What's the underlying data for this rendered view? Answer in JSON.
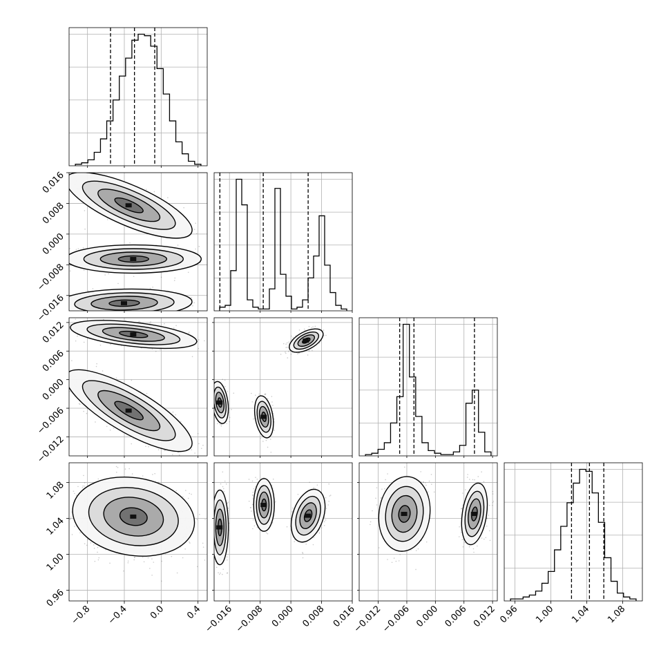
{
  "chart_data": {
    "type": "corner",
    "title": "",
    "grid": true,
    "colors": {
      "hist": "#000000",
      "scatter": "#666666",
      "contour": "#000000"
    },
    "params": [
      {
        "range": [
          -1.0,
          0.5
        ],
        "ticks": [
          -0.8,
          -0.4,
          0.0,
          0.4
        ],
        "tick_labels": [
          "−0.8",
          "−0.4",
          "0.0",
          "0.4"
        ]
      },
      {
        "range": [
          -0.02,
          0.016
        ],
        "ticks": [
          -0.016,
          -0.008,
          0.0,
          0.008,
          0.016
        ],
        "tick_labels": [
          "−0.016",
          "−0.008",
          "0.000",
          "0.008",
          "0.016"
        ]
      },
      {
        "range": [
          -0.016,
          0.013
        ],
        "ticks": [
          -0.012,
          -0.006,
          0.0,
          0.006,
          0.012
        ],
        "tick_labels": [
          "−0.012",
          "−0.006",
          "0.000",
          "0.006",
          "0.012"
        ]
      },
      {
        "range": [
          0.948,
          1.102
        ],
        "ticks": [
          0.96,
          1.0,
          1.04,
          1.08
        ],
        "tick_labels": [
          "0.96",
          "1.00",
          "1.04",
          "1.08"
        ]
      }
    ],
    "histograms": [
      {
        "values": [
          1,
          2,
          4,
          9,
          18,
          30,
          44,
          60,
          72,
          84,
          88,
          87,
          80,
          65,
          48,
          30,
          16,
          8,
          3,
          1
        ],
        "quantiles": [
          -0.55,
          -0.29,
          -0.07
        ]
      },
      {
        "values": [
          2,
          3,
          22,
          72,
          58,
          6,
          2,
          1,
          1,
          12,
          67,
          20,
          8,
          1,
          2,
          6,
          18,
          30,
          52,
          25,
          10,
          3,
          1
        ],
        "quantiles": [
          -0.0185,
          -0.0072,
          0.0045
        ]
      },
      {
        "values": [
          1,
          2,
          5,
          10,
          25,
          45,
          100,
          60,
          30,
          10,
          4,
          2,
          1,
          1,
          3,
          8,
          40,
          50,
          18,
          3
        ],
        "quantiles": [
          -0.0075,
          -0.0045,
          0.0082
        ]
      },
      {
        "values": [
          1,
          1,
          2,
          3,
          5,
          9,
          15,
          26,
          38,
          50,
          60,
          67,
          66,
          55,
          40,
          22,
          10,
          4,
          2,
          1
        ],
        "quantiles": [
          1.023,
          1.043,
          1.059
        ]
      }
    ],
    "pairs": [
      {
        "row": 1,
        "col": 0,
        "clusters": [
          {
            "cx": -0.35,
            "cy": 0.0075,
            "sx": 0.28,
            "sy": 0.0035,
            "rho": -0.75,
            "w": 0.33
          },
          {
            "cx": -0.3,
            "cy": -0.0065,
            "sx": 0.3,
            "sy": 0.0015,
            "rho": 0.0,
            "w": 0.33
          },
          {
            "cx": -0.4,
            "cy": -0.018,
            "sx": 0.3,
            "sy": 0.0015,
            "rho": 0.1,
            "w": 0.34
          }
        ]
      },
      {
        "row": 2,
        "col": 0,
        "clusters": [
          {
            "cx": -0.3,
            "cy": 0.0095,
            "sx": 0.28,
            "sy": 0.0012,
            "rho": -0.5,
            "w": 0.45
          },
          {
            "cx": -0.35,
            "cy": -0.0065,
            "sx": 0.28,
            "sy": 0.0035,
            "rho": -0.8,
            "w": 0.55
          }
        ]
      },
      {
        "row": 2,
        "col": 1,
        "clusters": [
          {
            "cx": -0.0185,
            "cy": -0.0048,
            "sx": 0.0009,
            "sy": 0.0018,
            "rho": -0.3,
            "w": 0.33
          },
          {
            "cx": -0.007,
            "cy": -0.0078,
            "sx": 0.001,
            "sy": 0.0018,
            "rho": -0.3,
            "w": 0.33
          },
          {
            "cx": 0.004,
            "cy": 0.0082,
            "sx": 0.0018,
            "sy": 0.001,
            "rho": 0.55,
            "w": 0.34
          }
        ]
      },
      {
        "row": 3,
        "col": 0,
        "clusters": [
          {
            "cx": -0.3,
            "cy": 1.042,
            "sx": 0.27,
            "sy": 0.018,
            "rho": -0.15,
            "w": 1.0
          }
        ]
      },
      {
        "row": 3,
        "col": 1,
        "clusters": [
          {
            "cx": -0.0185,
            "cy": 1.03,
            "sx": 0.0009,
            "sy": 0.017,
            "rho": 0.0,
            "w": 0.33
          },
          {
            "cx": -0.007,
            "cy": 1.055,
            "sx": 0.0011,
            "sy": 0.012,
            "rho": 0.0,
            "w": 0.33
          },
          {
            "cx": 0.0045,
            "cy": 1.043,
            "sx": 0.0018,
            "sy": 0.012,
            "rho": 0.35,
            "w": 0.34
          }
        ]
      },
      {
        "row": 3,
        "col": 2,
        "clusters": [
          {
            "cx": -0.0065,
            "cy": 1.045,
            "sx": 0.0022,
            "sy": 0.017,
            "rho": 0.1,
            "w": 0.6
          },
          {
            "cx": 0.0082,
            "cy": 1.045,
            "sx": 0.0011,
            "sy": 0.014,
            "rho": 0.3,
            "w": 0.4
          }
        ]
      }
    ]
  }
}
